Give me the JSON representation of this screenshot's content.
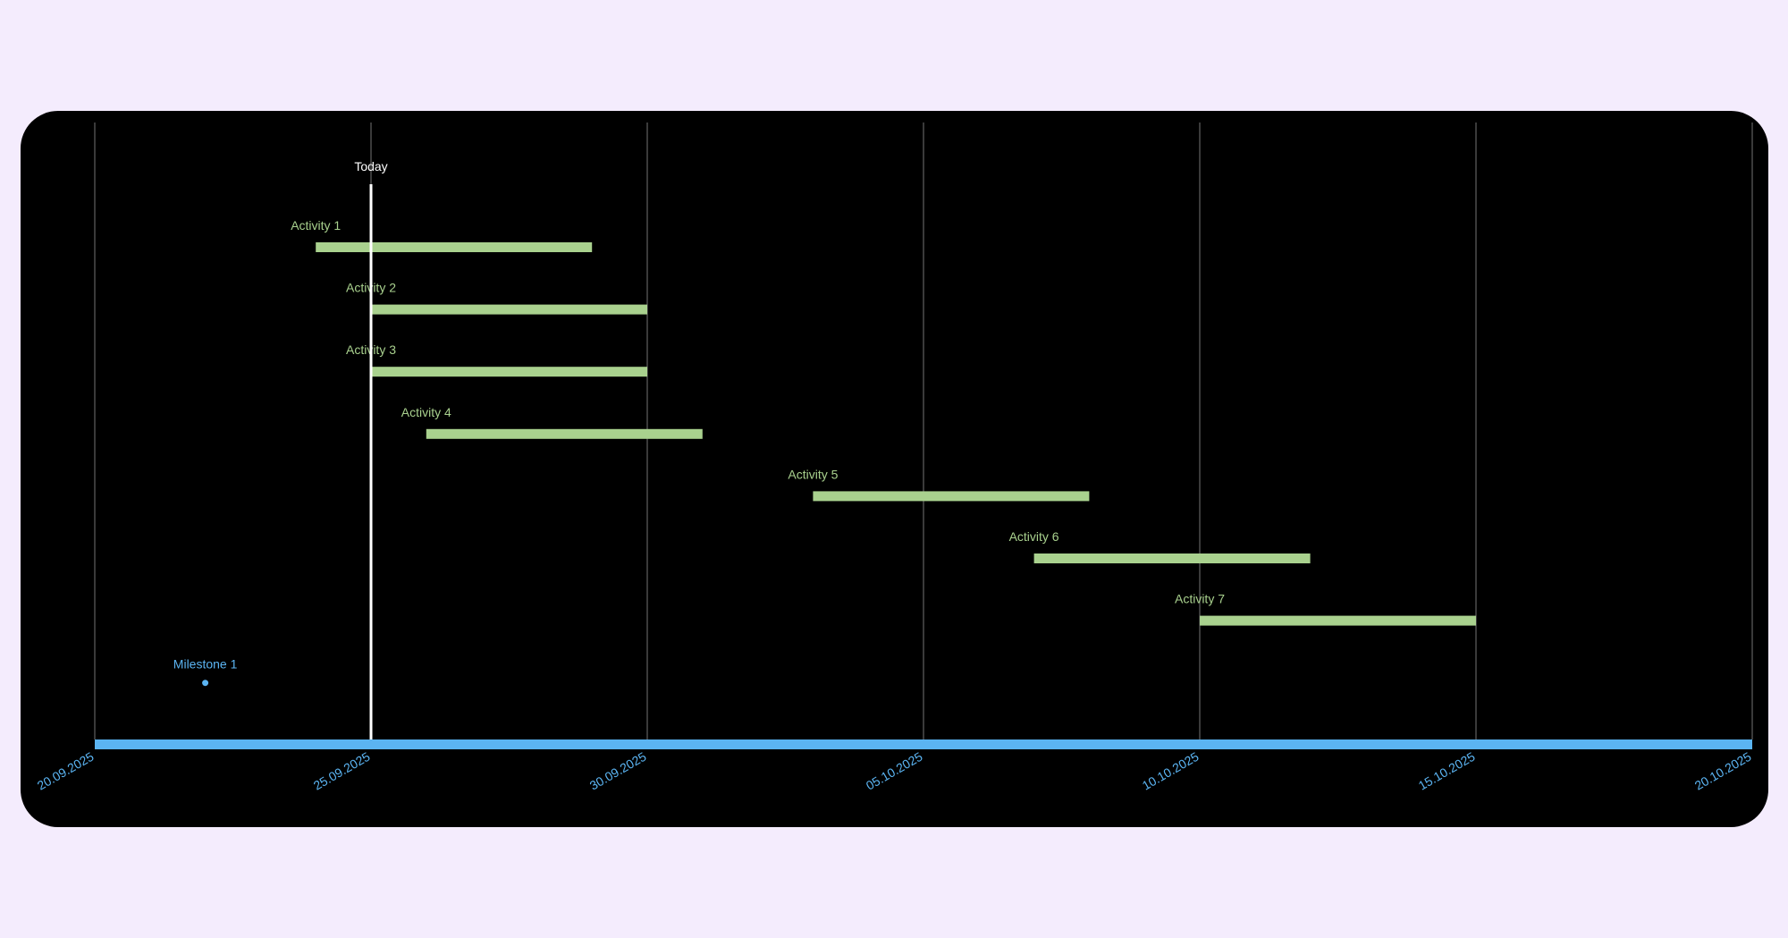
{
  "chart_data": {
    "type": "gantt",
    "x_axis": {
      "type": "date",
      "range": [
        "2025-09-20",
        "2025-10-20"
      ],
      "ticks": [
        {
          "date": "2025-09-20",
          "label": "20.09.2025"
        },
        {
          "date": "2025-09-25",
          "label": "25.09.2025"
        },
        {
          "date": "2025-09-30",
          "label": "30.09.2025"
        },
        {
          "date": "2025-10-05",
          "label": "05.10.2025"
        },
        {
          "date": "2025-10-10",
          "label": "10.10.2025"
        },
        {
          "date": "2025-10-15",
          "label": "15.10.2025"
        },
        {
          "date": "2025-10-20",
          "label": "20.10.2025"
        }
      ],
      "vertical_grid": true
    },
    "today": {
      "label": "Today",
      "date": "2025-09-25"
    },
    "activities": [
      {
        "name": "Activity 1",
        "start": "2025-09-24",
        "end": "2025-09-29"
      },
      {
        "name": "Activity 2",
        "start": "2025-09-25",
        "end": "2025-09-30"
      },
      {
        "name": "Activity 3",
        "start": "2025-09-25",
        "end": "2025-09-30"
      },
      {
        "name": "Activity 4",
        "start": "2025-09-26",
        "end": "2025-10-01"
      },
      {
        "name": "Activity 5",
        "start": "2025-10-03",
        "end": "2025-10-08"
      },
      {
        "name": "Activity 6",
        "start": "2025-10-07",
        "end": "2025-10-12"
      },
      {
        "name": "Activity 7",
        "start": "2025-10-10",
        "end": "2025-10-15"
      }
    ],
    "milestones": [
      {
        "name": "Milestone 1",
        "date": "2025-09-22"
      }
    ],
    "colors": {
      "background": "#000000",
      "page": "#f4ecfd",
      "activity": "#a9d18e",
      "milestone": "#5bb4f2",
      "axis": "#5bb4f2",
      "grid": "#595959",
      "today": "#ffffff"
    }
  }
}
